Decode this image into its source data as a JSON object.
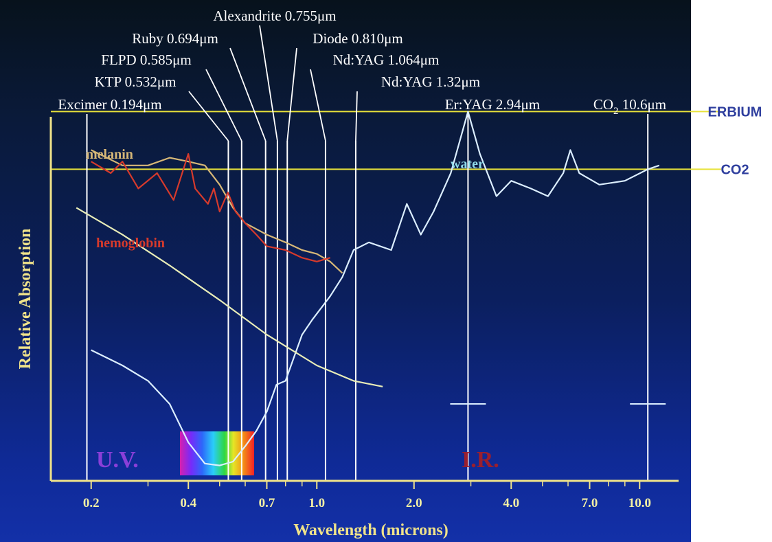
{
  "chart_data": {
    "type": "line",
    "title": "",
    "xlabel": "Wavelength (microns)",
    "ylabel": "Relative Absorption",
    "x_scale": "log",
    "xlim": [
      0.15,
      14
    ],
    "ylim": [
      0,
      1
    ],
    "x_ticks": [
      {
        "value": 0.2,
        "label": "0.2"
      },
      {
        "value": 0.4,
        "label": "0.4"
      },
      {
        "value": 0.7,
        "label": "0.7"
      },
      {
        "value": 1.0,
        "label": "1.0"
      },
      {
        "value": 2.0,
        "label": "2.0"
      },
      {
        "value": 4.0,
        "label": "4.0"
      },
      {
        "value": 7.0,
        "label": "7.0"
      },
      {
        "value": 10.0,
        "label": "10.0"
      }
    ],
    "minor_ticks": [
      0.3,
      0.5,
      0.6,
      0.8,
      0.9,
      3.0,
      5.0,
      6.0,
      8.0,
      9.0
    ],
    "grid": false,
    "lasers": [
      {
        "label": "Excimer 0.194μm",
        "wavelength": 0.194,
        "color": "#ffffff"
      },
      {
        "label": "KTP 0.532μm",
        "wavelength": 0.532,
        "color": "#ffffff"
      },
      {
        "label": "FLPD 0.585μm",
        "wavelength": 0.585,
        "color": "#ffffff"
      },
      {
        "label": "Ruby 0.694μm",
        "wavelength": 0.694,
        "color": "#ffffff"
      },
      {
        "label": "Alexandrite 0.755μm",
        "wavelength": 0.755,
        "color": "#ffffff"
      },
      {
        "label": "Diode 0.810μm",
        "wavelength": 0.81,
        "color": "#ffffff"
      },
      {
        "label": "Nd:YAG 1.064μm",
        "wavelength": 1.064,
        "color": "#ffffff"
      },
      {
        "label": "Nd:YAG 1.32μm",
        "wavelength": 1.32,
        "color": "#ffffff"
      },
      {
        "label": "Er:YAG 2.94μm",
        "wavelength": 2.94,
        "color": "#ffffff"
      },
      {
        "label": "CO",
        "subscript": "2",
        "suffix": " 10.6μm",
        "wavelength": 10.6,
        "color": "#ffffff"
      }
    ],
    "reference_lines": [
      {
        "label": "ERBIUM",
        "y": 0.96,
        "color": "#e8e23a"
      },
      {
        "label": "CO2",
        "y": 0.81,
        "color": "#e8e23a"
      }
    ],
    "series": [
      {
        "name": "water",
        "color": "#dbeeff",
        "points": [
          [
            0.2,
            0.34
          ],
          [
            0.25,
            0.3
          ],
          [
            0.3,
            0.26
          ],
          [
            0.35,
            0.2
          ],
          [
            0.4,
            0.1
          ],
          [
            0.45,
            0.045
          ],
          [
            0.5,
            0.04
          ],
          [
            0.55,
            0.05
          ],
          [
            0.6,
            0.09
          ],
          [
            0.65,
            0.13
          ],
          [
            0.7,
            0.18
          ],
          [
            0.75,
            0.25
          ],
          [
            0.8,
            0.26
          ],
          [
            0.9,
            0.38
          ],
          [
            0.97,
            0.42
          ],
          [
            1.1,
            0.48
          ],
          [
            1.2,
            0.53
          ],
          [
            1.3,
            0.6
          ],
          [
            1.45,
            0.62
          ],
          [
            1.7,
            0.6
          ],
          [
            1.9,
            0.72
          ],
          [
            2.1,
            0.64
          ],
          [
            2.3,
            0.7
          ],
          [
            2.6,
            0.8
          ],
          [
            2.94,
            0.96
          ],
          [
            3.2,
            0.85
          ],
          [
            3.6,
            0.74
          ],
          [
            4.0,
            0.78
          ],
          [
            4.6,
            0.76
          ],
          [
            5.2,
            0.74
          ],
          [
            5.8,
            0.8
          ],
          [
            6.1,
            0.86
          ],
          [
            6.5,
            0.8
          ],
          [
            7.5,
            0.77
          ],
          [
            9.0,
            0.78
          ],
          [
            10.6,
            0.81
          ],
          [
            11.5,
            0.82
          ]
        ]
      },
      {
        "name": "melanin",
        "color": "#d7b877",
        "points": [
          [
            0.2,
            0.86
          ],
          [
            0.25,
            0.82
          ],
          [
            0.3,
            0.82
          ],
          [
            0.35,
            0.84
          ],
          [
            0.4,
            0.83
          ],
          [
            0.45,
            0.82
          ],
          [
            0.5,
            0.77
          ],
          [
            0.55,
            0.71
          ],
          [
            0.6,
            0.67
          ],
          [
            0.7,
            0.64
          ],
          [
            0.8,
            0.62
          ],
          [
            0.9,
            0.6
          ],
          [
            1.0,
            0.59
          ],
          [
            1.1,
            0.57
          ],
          [
            1.2,
            0.54
          ]
        ]
      },
      {
        "name": "hemoglobin",
        "color": "#d63a2c",
        "points": [
          [
            0.2,
            0.83
          ],
          [
            0.23,
            0.8
          ],
          [
            0.25,
            0.83
          ],
          [
            0.28,
            0.76
          ],
          [
            0.32,
            0.8
          ],
          [
            0.36,
            0.73
          ],
          [
            0.4,
            0.85
          ],
          [
            0.42,
            0.76
          ],
          [
            0.46,
            0.72
          ],
          [
            0.48,
            0.76
          ],
          [
            0.5,
            0.7
          ],
          [
            0.53,
            0.75
          ],
          [
            0.56,
            0.7
          ],
          [
            0.6,
            0.67
          ],
          [
            0.65,
            0.64
          ],
          [
            0.7,
            0.61
          ],
          [
            0.8,
            0.6
          ],
          [
            0.9,
            0.58
          ],
          [
            1.0,
            0.57
          ],
          [
            1.1,
            0.58
          ]
        ]
      },
      {
        "name": "",
        "color": "#e9edb8",
        "points": [
          [
            0.18,
            0.71
          ],
          [
            0.25,
            0.64
          ],
          [
            0.35,
            0.56
          ],
          [
            0.5,
            0.47
          ],
          [
            0.7,
            0.38
          ],
          [
            1.0,
            0.3
          ],
          [
            1.3,
            0.26
          ],
          [
            1.6,
            0.245
          ]
        ]
      }
    ],
    "region_labels": [
      {
        "text": "U.V.",
        "color": "#8a3fd8"
      },
      {
        "text": "I.R.",
        "color": "#9a1f2e"
      }
    ],
    "error_bars": [
      {
        "x": 2.94,
        "y": 0.2
      },
      {
        "x": 10.6,
        "y": 0.2
      }
    ]
  }
}
